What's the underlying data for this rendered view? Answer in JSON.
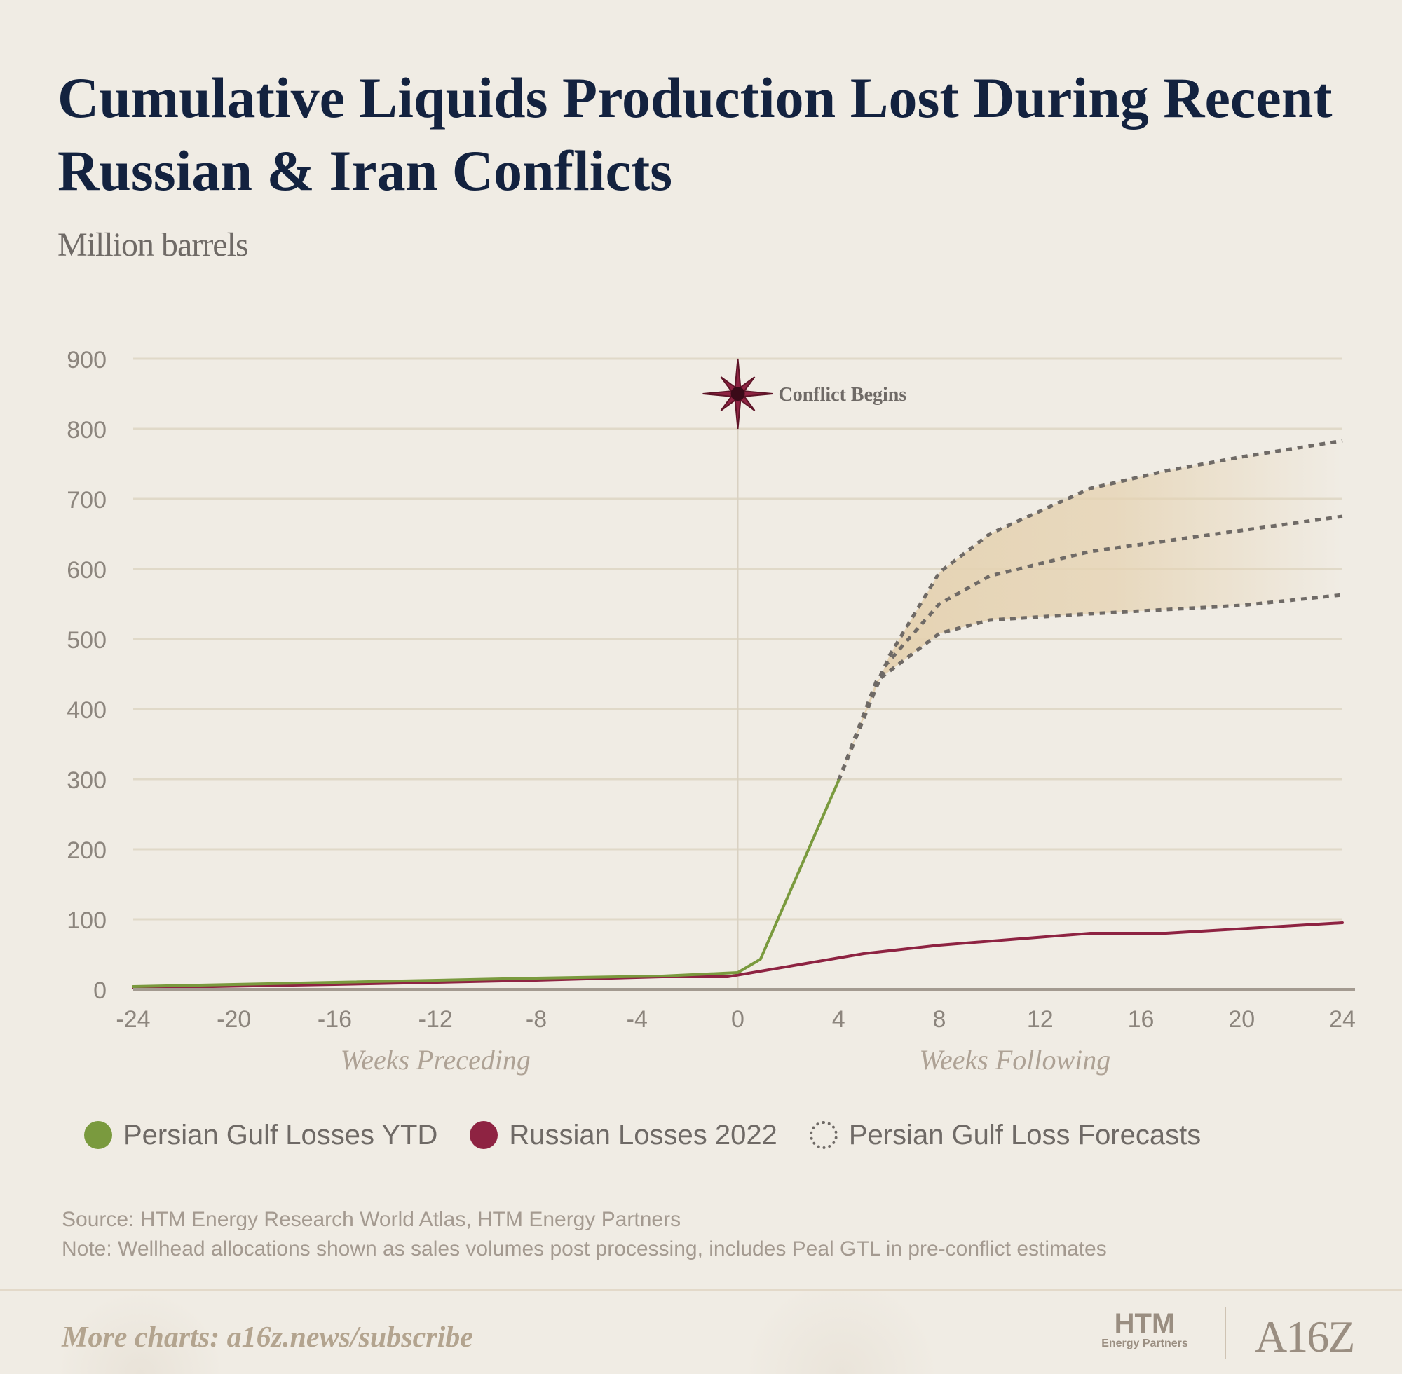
{
  "header": {
    "title": "Cumulative Liquids Production Lost During Recent Russian & Iran Conflicts",
    "subtitle": "Million barrels"
  },
  "legend": [
    {
      "label": "Persian Gulf Losses YTD",
      "color": "#7a9a3e",
      "style": "filled"
    },
    {
      "label": "Russian Losses 2022",
      "color": "#8e2342",
      "style": "filled"
    },
    {
      "label": "Persian Gulf Loss Forecasts",
      "color": "#6f6a66",
      "style": "dotted"
    }
  ],
  "notes": {
    "source": "Source: HTM Energy Research World Atlas, HTM Energy Partners",
    "note": "Note: Wellhead allocations shown as sales volumes post processing, includes Peal GTL in pre-conflict estimates"
  },
  "footer": {
    "link": "More charts: a16z.news/subscribe",
    "logo_htm": "HTM",
    "logo_htm_sub": "Energy Partners",
    "logo_a16z": "A16Z"
  },
  "chart_data": {
    "type": "line",
    "title": "Cumulative Liquids Production Lost During Recent Russian & Iran Conflicts",
    "ylabel": "Million barrels",
    "xlim": [
      -24,
      24
    ],
    "ylim": [
      0,
      900
    ],
    "x_ticks": [
      -24,
      -20,
      -16,
      -12,
      -8,
      -4,
      0,
      4,
      8,
      12,
      16,
      20,
      24
    ],
    "y_ticks": [
      0,
      100,
      200,
      300,
      400,
      500,
      600,
      700,
      800,
      900
    ],
    "x_group_labels": [
      {
        "label": "Weeks Preceding",
        "x": -12
      },
      {
        "label": "Weeks Following",
        "x": 11
      }
    ],
    "grid": true,
    "annotation": {
      "label": "Conflict Begins",
      "x": 0,
      "y": 850
    },
    "series": [
      {
        "name": "Persian Gulf Losses YTD",
        "color": "#7a9a3e",
        "style": "solid",
        "points": [
          [
            -24,
            4
          ],
          [
            -16,
            10
          ],
          [
            -8,
            16
          ],
          [
            -3,
            19
          ],
          [
            0,
            24
          ],
          [
            0.9,
            43
          ],
          [
            4,
            298
          ]
        ]
      },
      {
        "name": "Russian Losses 2022",
        "color": "#8e2342",
        "style": "solid",
        "points": [
          [
            -24,
            2
          ],
          [
            -16,
            7
          ],
          [
            -8,
            13
          ],
          [
            -3,
            18
          ],
          [
            -0.4,
            18
          ],
          [
            5,
            51
          ],
          [
            8,
            63
          ],
          [
            14,
            80
          ],
          [
            17,
            80
          ],
          [
            24,
            95
          ]
        ]
      }
    ],
    "forecast": {
      "name": "Persian Gulf Loss Forecasts",
      "color": "#6f6a66",
      "style": "dotted",
      "band_color": "#e5d2b1",
      "high": [
        [
          4,
          298
        ],
        [
          6,
          475
        ],
        [
          8,
          595
        ],
        [
          10,
          650
        ],
        [
          14,
          715
        ],
        [
          17,
          740
        ],
        [
          20,
          760
        ],
        [
          24,
          783
        ]
      ],
      "mid": [
        [
          4,
          298
        ],
        [
          5.8,
          460
        ],
        [
          8,
          550
        ],
        [
          10,
          590
        ],
        [
          14,
          625
        ],
        [
          17,
          640
        ],
        [
          20,
          655
        ],
        [
          24,
          675
        ]
      ],
      "low": [
        [
          4,
          298
        ],
        [
          5.5,
          440
        ],
        [
          8,
          508
        ],
        [
          10,
          527
        ],
        [
          14,
          536
        ],
        [
          17,
          542
        ],
        [
          20,
          548
        ],
        [
          24,
          563
        ]
      ]
    }
  }
}
